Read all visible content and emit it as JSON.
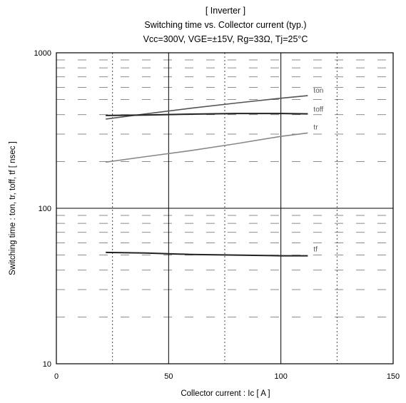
{
  "chart_data": {
    "type": "line",
    "title_lines": [
      "[ Inverter ]",
      "Switching time  vs.  Collector current  (typ.)",
      "Vcc=300V, VGE=±15V, Rg=33Ω, Tj=25°C"
    ],
    "xlabel": "Collector current  :  Ic  [ A ]",
    "ylabel": "Switching time  :  ton, tr, toff, tf  [ nsec ]",
    "x_scale": "linear",
    "y_scale": "log",
    "xlim": [
      0,
      150
    ],
    "ylim": [
      10,
      1000
    ],
    "x_ticks": [
      "0",
      "50",
      "100",
      "150"
    ],
    "y_ticks": [
      "10",
      "100",
      "1000"
    ],
    "grid": true,
    "series": [
      {
        "name": "ton",
        "color": "#555555",
        "x": [
          22,
          40,
          60,
          80,
          100,
          112
        ],
        "y": [
          375,
          405,
          440,
          475,
          510,
          530
        ]
      },
      {
        "name": "toff",
        "color": "#222222",
        "x": [
          22,
          40,
          60,
          80,
          100,
          112
        ],
        "y": [
          395,
          398,
          403,
          407,
          407,
          405
        ]
      },
      {
        "name": "tr",
        "color": "#888888",
        "x": [
          22,
          40,
          60,
          80,
          100,
          112
        ],
        "y": [
          198,
          215,
          235,
          260,
          290,
          305
        ]
      },
      {
        "name": "tf",
        "color": "#222222",
        "x": [
          22,
          40,
          60,
          80,
          100,
          112
        ],
        "y": [
          52,
          51.5,
          50.5,
          50,
          49.5,
          49.5
        ]
      }
    ]
  }
}
